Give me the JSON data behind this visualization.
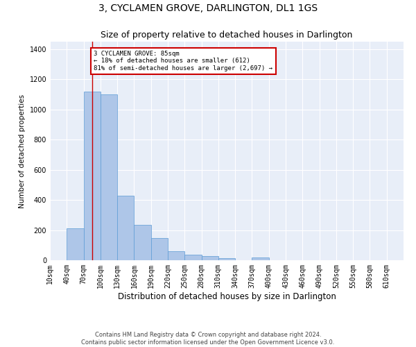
{
  "title": "3, CYCLAMEN GROVE, DARLINGTON, DL1 1GS",
  "subtitle": "Size of property relative to detached houses in Darlington",
  "xlabel": "Distribution of detached houses by size in Darlington",
  "ylabel": "Number of detached properties",
  "footer_line1": "Contains HM Land Registry data © Crown copyright and database right 2024.",
  "footer_line2": "Contains public sector information licensed under the Open Government Licence v3.0.",
  "bin_starts": [
    10,
    40,
    70,
    100,
    130,
    160,
    190,
    220,
    250,
    280,
    310,
    340,
    370,
    400,
    430,
    460,
    490,
    520,
    550,
    580,
    610
  ],
  "bar_heights": [
    0,
    210,
    1120,
    1100,
    430,
    235,
    148,
    58,
    38,
    27,
    12,
    0,
    17,
    0,
    0,
    0,
    0,
    0,
    0,
    0,
    0
  ],
  "bin_width": 30,
  "bar_color": "#aec6e8",
  "bar_edge_color": "#5b9bd5",
  "bg_color": "#e8eef8",
  "grid_color": "#ffffff",
  "vline_x": 85,
  "vline_color": "#cc0000",
  "annotation_text": "3 CYCLAMEN GROVE: 85sqm\n← 18% of detached houses are smaller (612)\n81% of semi-detached houses are larger (2,697) →",
  "annotation_box_color": "#cc0000",
  "ylim": [
    0,
    1450
  ],
  "yticks": [
    0,
    200,
    400,
    600,
    800,
    1000,
    1200,
    1400
  ],
  "xlim_min": 10,
  "xlim_max": 640,
  "title_fontsize": 10,
  "subtitle_fontsize": 9,
  "xlabel_fontsize": 8.5,
  "ylabel_fontsize": 7.5,
  "tick_fontsize": 7,
  "annot_fontsize": 6.5,
  "footer_fontsize": 6
}
